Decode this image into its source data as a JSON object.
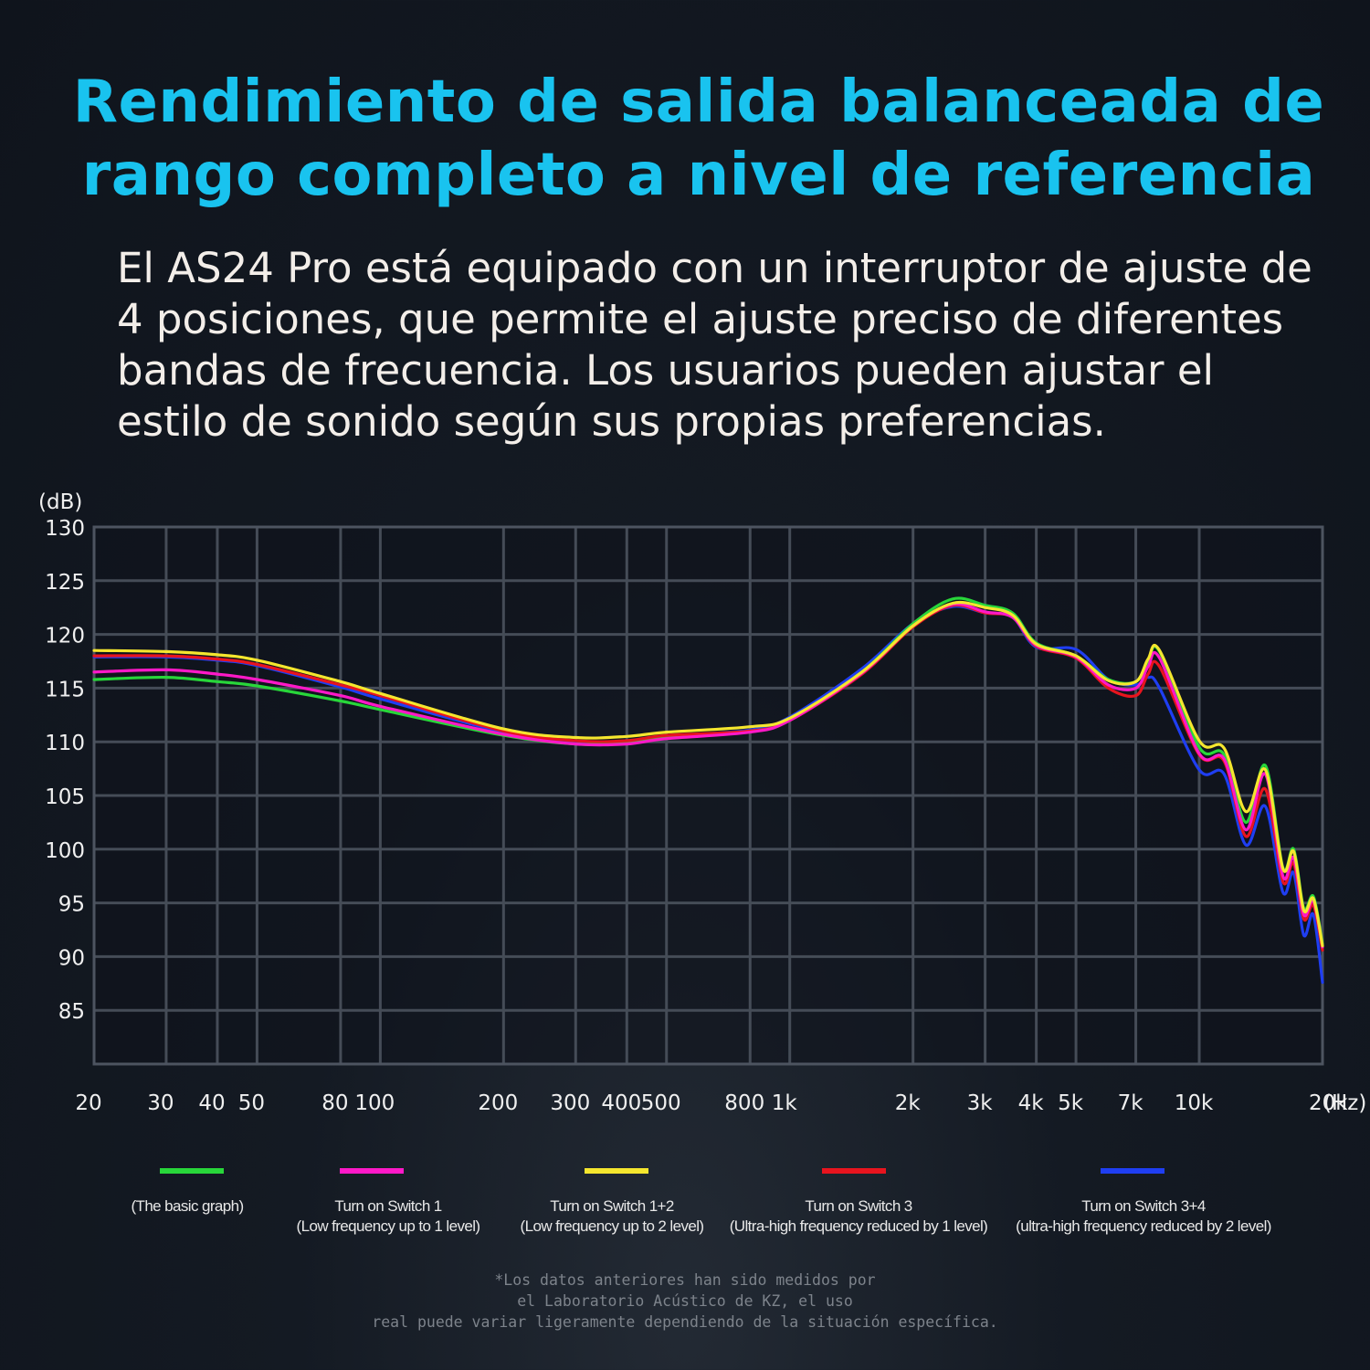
{
  "header": {
    "title_line1": "Rendimiento de salida balanceada de",
    "title_line2": "rango completo a nivel de referencia"
  },
  "description": {
    "line1": "El AS24 Pro está equipado con un interruptor de ajuste de",
    "line2": "4 posiciones, que permite el ajuste preciso de diferentes",
    "line3": "bandas de frecuencia. Los usuarios pueden ajustar el",
    "line4": "estilo de sonido según sus propias preferencias."
  },
  "chart_data": {
    "type": "line",
    "ylabel": "(dB)",
    "xunit": "(Hz)",
    "xscale": "log",
    "ylim": [
      80,
      130
    ],
    "xlim": [
      20,
      20000
    ],
    "grid": true,
    "yticks": [
      130,
      125,
      120,
      115,
      110,
      105,
      100,
      95,
      90,
      85
    ],
    "xticks": [
      {
        "label": "20",
        "value": 20
      },
      {
        "label": "30",
        "value": 30
      },
      {
        "label": "40",
        "value": 40
      },
      {
        "label": "50",
        "value": 50
      },
      {
        "label": "80",
        "value": 80
      },
      {
        "label": "100",
        "value": 100
      },
      {
        "label": "200",
        "value": 200
      },
      {
        "label": "300",
        "value": 300
      },
      {
        "label": "400",
        "value": 400
      },
      {
        "label": "500",
        "value": 500
      },
      {
        "label": "800",
        "value": 800
      },
      {
        "label": "1k",
        "value": 1000
      },
      {
        "label": "2k",
        "value": 2000
      },
      {
        "label": "3k",
        "value": 3000
      },
      {
        "label": "4k",
        "value": 4000
      },
      {
        "label": "5k",
        "value": 5000
      },
      {
        "label": "7k",
        "value": 7000
      },
      {
        "label": "10k",
        "value": 10000
      },
      {
        "label": "20k",
        "value": 20000
      }
    ],
    "x": [
      20,
      30,
      40,
      50,
      80,
      100,
      200,
      300,
      400,
      500,
      800,
      1000,
      1500,
      2000,
      2500,
      3000,
      3500,
      4000,
      5000,
      6000,
      7000,
      7500,
      8000,
      10000,
      11500,
      13000,
      14500,
      16000,
      17000,
      18000,
      19000,
      20000
    ],
    "series": [
      {
        "name": "(The basic graph)",
        "color": "#28d63a",
        "values": [
          115.8,
          116.0,
          115.6,
          115.2,
          113.8,
          113.0,
          110.6,
          109.8,
          109.9,
          110.5,
          111.0,
          112.0,
          116.5,
          121.0,
          123.3,
          122.7,
          122.0,
          119.2,
          118.0,
          115.8,
          115.6,
          117.5,
          118.4,
          109.5,
          108.8,
          102.5,
          107.8,
          98.3,
          100.0,
          94.5,
          95.6,
          91.2
        ]
      },
      {
        "name": "Turn on Switch 1",
        "color": "#ff19c8",
        "values": [
          116.5,
          116.7,
          116.3,
          115.8,
          114.3,
          113.3,
          110.7,
          109.8,
          109.8,
          110.3,
          110.9,
          112.0,
          116.4,
          120.8,
          122.8,
          122.1,
          121.6,
          119.0,
          117.9,
          115.3,
          115.0,
          117.0,
          117.8,
          108.9,
          108.4,
          101.8,
          107.0,
          97.5,
          99.2,
          93.9,
          95.2,
          90.9
        ]
      },
      {
        "name": "Turn on Switch 1+2",
        "color": "#f5e62e",
        "values": [
          118.5,
          118.4,
          118.1,
          117.6,
          115.6,
          114.5,
          111.2,
          110.4,
          110.5,
          110.9,
          111.4,
          112.2,
          116.5,
          120.8,
          122.9,
          122.5,
          121.8,
          119.1,
          118.0,
          115.7,
          115.6,
          117.7,
          118.5,
          110.1,
          109.4,
          103.5,
          107.4,
          98.2,
          99.8,
          94.3,
          95.4,
          91.0
        ]
      },
      {
        "name": "Turn on Switch 3",
        "color": "#e8141e",
        "values": [
          118.0,
          118.0,
          117.7,
          117.2,
          115.3,
          114.3,
          111.0,
          110.1,
          110.1,
          110.6,
          111.0,
          112.0,
          116.3,
          120.7,
          122.7,
          122.0,
          121.6,
          118.9,
          117.8,
          115.0,
          114.3,
          116.3,
          117.0,
          108.8,
          108.2,
          101.2,
          105.6,
          97.0,
          98.7,
          93.5,
          94.8,
          90.6
        ]
      },
      {
        "name": "Turn on Switch 3+4",
        "color": "#1f3ef2",
        "values": [
          117.9,
          117.9,
          117.6,
          117.1,
          115.1,
          114.0,
          110.9,
          110.0,
          110.0,
          110.5,
          111.1,
          112.3,
          116.8,
          121.0,
          122.6,
          122.0,
          121.6,
          118.8,
          118.6,
          115.8,
          115.3,
          116.0,
          115.0,
          107.4,
          107.0,
          100.4,
          104.0,
          96.0,
          97.8,
          92.0,
          93.9,
          87.6
        ]
      }
    ]
  },
  "legend": [
    {
      "line1": "(The basic graph)",
      "line2": ""
    },
    {
      "line1": "Turn on Switch 1",
      "line2": "(Low frequency up to 1 level)"
    },
    {
      "line1": "Turn on Switch 1+2",
      "line2": "(Low frequency up to 2 level)"
    },
    {
      "line1": "Turn on Switch 3",
      "line2": "(Ultra-high frequency reduced by 1 level)"
    },
    {
      "line1": "Turn on Switch 3+4",
      "line2": "(ultra-high frequency reduced by 2 level)"
    }
  ],
  "footnote": {
    "line1": "*Los datos anteriores han sido medidos por",
    "line2": "el Laboratorio Acústico de KZ, el uso",
    "line3": "real puede variar ligeramente dependiendo de la situación específica."
  }
}
